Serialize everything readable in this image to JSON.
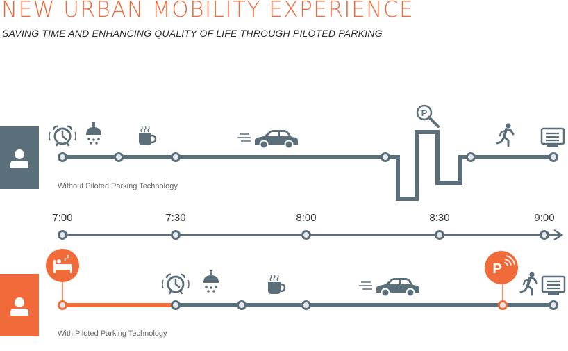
{
  "header": {
    "title": "NEW URBAN MOBILITY EXPERIENCE",
    "subtitle": "SAVING TIME AND ENHANCING QUALITY OF LIFE THROUGH PILOTED PARKING"
  },
  "colors": {
    "accent": "#f06a3a",
    "slate": "#5b6f7b",
    "node_fill": "#e6e9eb"
  },
  "timeline": {
    "ticks": [
      "7:00",
      "7:30",
      "8:00",
      "8:30",
      "9:00"
    ]
  },
  "scenarios": {
    "without": {
      "label": "Without Piloted Parking Technology",
      "icons": [
        "user-icon",
        "alarm-clock-icon",
        "shower-icon",
        "coffee-cup-icon",
        "car-icon",
        "parking-search-icon",
        "walking-person-icon",
        "desk-icon"
      ]
    },
    "with": {
      "label": "With Piloted Parking Technology",
      "icons": [
        "user-icon",
        "sleeping-bed-icon",
        "alarm-clock-icon",
        "shower-icon",
        "coffee-cup-icon",
        "car-icon",
        "piloted-parking-icon",
        "walking-person-icon",
        "desk-icon"
      ]
    }
  }
}
